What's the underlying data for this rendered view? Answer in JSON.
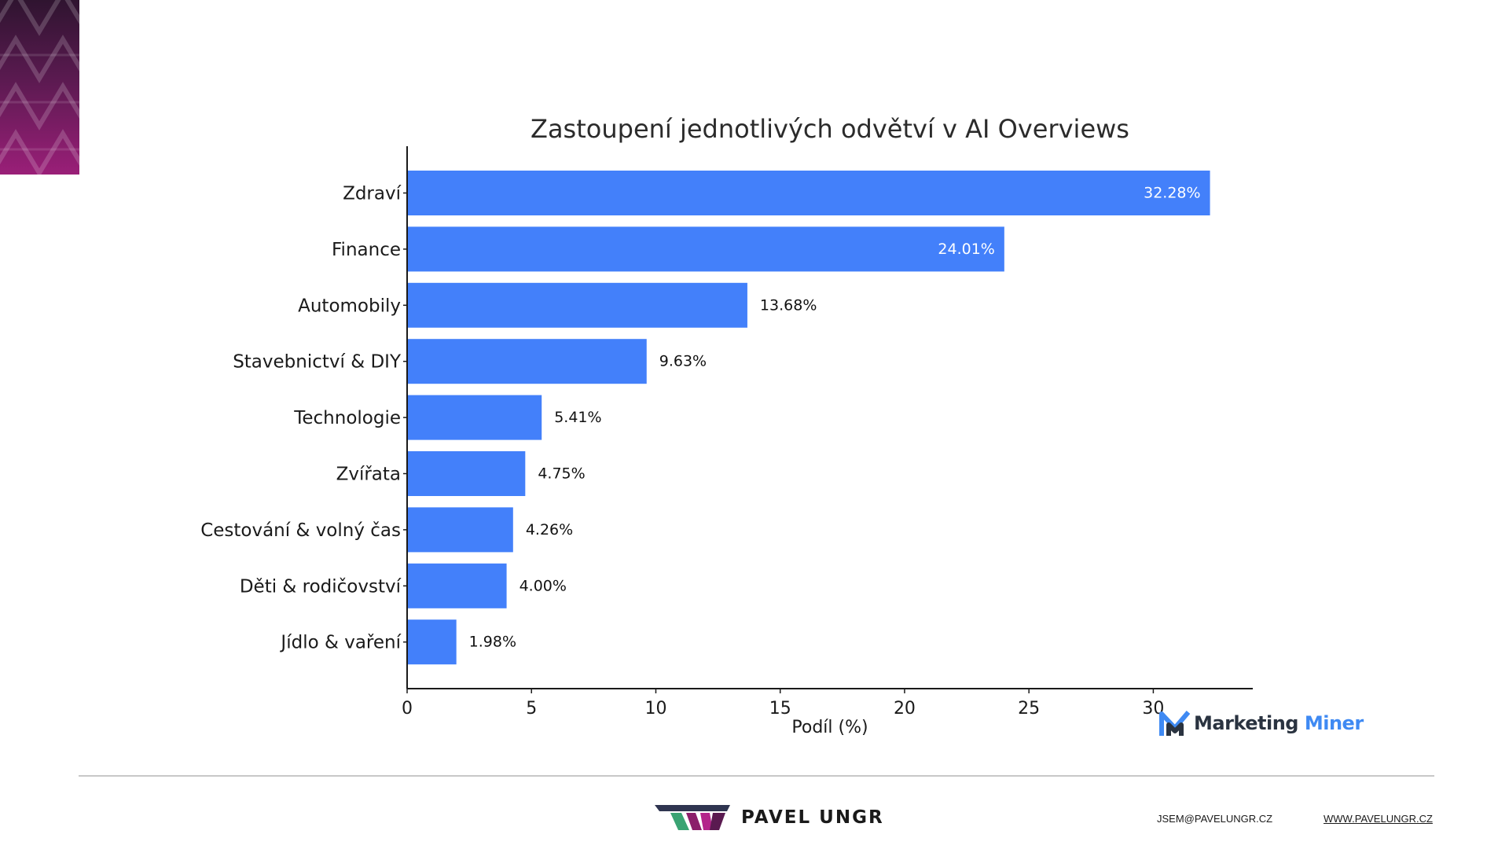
{
  "colors": {
    "bar": "#4380fa",
    "value_inside": "#ffffff",
    "value_outside": "#111111",
    "brand_magenta": "#a01f7e",
    "mm_dark": "#2a3340",
    "mm_blue": "#3f8af3"
  },
  "chart_data": {
    "type": "bar",
    "orientation": "horizontal",
    "title": "Zastoupení jednotlivých odvětví v AI Overviews",
    "xlabel": "Podíl (%)",
    "ylabel": "",
    "xlim": [
      0,
      34
    ],
    "xticks": [
      0,
      5,
      10,
      15,
      20,
      25,
      30
    ],
    "categories": [
      "Zdraví",
      "Finance",
      "Automobily",
      "Stavebnictví & DIY",
      "Technologie",
      "Zvířata",
      "Cestování & volný čas",
      "Děti & rodičovství",
      "Jídlo & vaření"
    ],
    "values": [
      32.28,
      24.01,
      13.68,
      9.63,
      5.41,
      4.75,
      4.26,
      4.0,
      1.98
    ],
    "value_labels": [
      "32.28%",
      "24.01%",
      "13.68%",
      "9.63%",
      "5.41%",
      "4.75%",
      "4.26%",
      "4.00%",
      "1.98%"
    ],
    "grid": false,
    "legend": "none"
  },
  "watermark": {
    "brand_word1": "Marketing",
    "brand_word2": "Miner",
    "icon": "marketing-miner-m-icon"
  },
  "footer": {
    "brand_name": "PAVEL UNGR",
    "logo_icon": "pavel-ungr-logo-icon",
    "email": "JSEM@PAVELUNGR.CZ",
    "website": "WWW.PAVELUNGR.CZ"
  },
  "decoration": {
    "icon": "corner-pattern-icon"
  }
}
